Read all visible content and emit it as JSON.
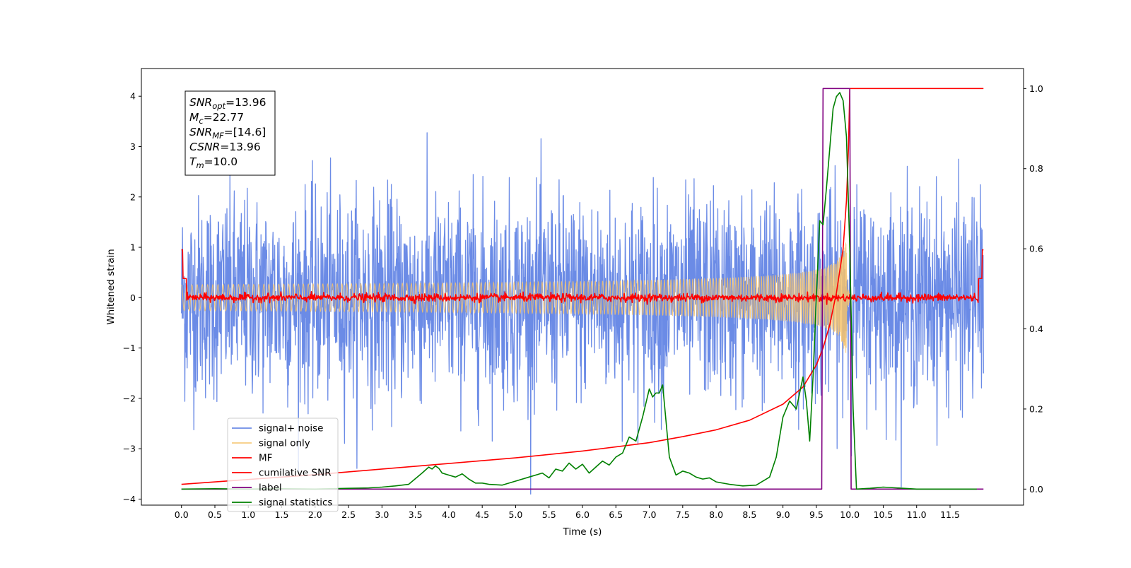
{
  "chart_data": {
    "type": "line",
    "xlabel": "Time (s)",
    "ylabel": "Whitened strain",
    "x_ticks": [
      0.0,
      0.5,
      1.0,
      1.5,
      2.0,
      2.5,
      3.0,
      3.5,
      4.0,
      4.5,
      5.0,
      5.5,
      6.0,
      6.5,
      7.0,
      7.5,
      8.0,
      8.5,
      9.0,
      9.5,
      10.0,
      10.5,
      11.0,
      11.5
    ],
    "xlim": [
      -0.6,
      12.6
    ],
    "ylim_left": [
      -4.12,
      4.55
    ],
    "ylim_right": [
      -0.04,
      1.05
    ],
    "left_ticks": [
      -4,
      -3,
      -2,
      -1,
      0,
      1,
      2,
      3,
      4
    ],
    "right_ticks": [
      0.0,
      0.2,
      0.4,
      0.6,
      0.8,
      1.0
    ],
    "grid": false,
    "legend_location": "lower left",
    "annotations": [
      {
        "key": "snr_opt",
        "base": "SNR",
        "sub": "opt",
        "value": "=13.96"
      },
      {
        "key": "mc",
        "base": "M",
        "sub": "c",
        "value": "=22.77"
      },
      {
        "key": "snr_mf",
        "base": "SNR",
        "sub": "MF",
        "value": "=[14.6]"
      },
      {
        "key": "csnr",
        "base": "CSNR",
        "sub": "",
        "value": "=13.96"
      },
      {
        "key": "tm",
        "base": "T",
        "sub": "m",
        "value": "=10.0"
      }
    ],
    "series": [
      {
        "name": "signal+ noise",
        "color": "#6b8be6",
        "axis": "left",
        "shape": "noise",
        "t_range": [
          0,
          12
        ],
        "amplitude_sd": 1.0
      },
      {
        "name": "signal only",
        "color": "#f5c26b",
        "axis": "left",
        "shape": "chirp",
        "t_range": [
          0,
          10.05
        ],
        "peak_amplitude": 1.1,
        "merger_time": 9.95
      },
      {
        "name": "MF",
        "color": "#ff0000",
        "axis": "left",
        "shape": "mf",
        "t_range": [
          0,
          12
        ],
        "baseline": 0.0,
        "noise_sd": 0.04,
        "edge_value": 0.95
      },
      {
        "name": "cumilative SNR",
        "color": "#ff0000",
        "axis": "right",
        "x": [
          0.0,
          1.0,
          2.0,
          3.0,
          4.0,
          5.0,
          6.0,
          7.0,
          7.5,
          8.0,
          8.5,
          9.0,
          9.3,
          9.5,
          9.6,
          9.7,
          9.8,
          9.9,
          9.95,
          9.98,
          10.0,
          12.0
        ],
        "y": [
          0.012,
          0.024,
          0.036,
          0.05,
          0.064,
          0.078,
          0.095,
          0.116,
          0.131,
          0.148,
          0.172,
          0.212,
          0.255,
          0.31,
          0.352,
          0.41,
          0.49,
          0.6,
          0.72,
          0.85,
          1.0,
          1.0
        ]
      },
      {
        "name": "label",
        "color": "#800080",
        "axis": "right",
        "x": [
          0.0,
          9.58,
          9.6,
          10.0,
          10.02,
          12.0
        ],
        "y": [
          0.0,
          0.0,
          1.0,
          1.0,
          0.0,
          0.0
        ]
      },
      {
        "name": "signal statistics",
        "color": "#008000",
        "axis": "right",
        "x": [
          0.0,
          0.5,
          1.0,
          1.5,
          2.0,
          2.5,
          2.8,
          3.0,
          3.2,
          3.4,
          3.6,
          3.7,
          3.75,
          3.8,
          3.85,
          3.9,
          4.0,
          4.1,
          4.2,
          4.3,
          4.4,
          4.5,
          4.6,
          4.8,
          5.0,
          5.2,
          5.4,
          5.5,
          5.6,
          5.7,
          5.8,
          5.9,
          6.0,
          6.1,
          6.2,
          6.3,
          6.4,
          6.5,
          6.6,
          6.7,
          6.8,
          6.9,
          7.0,
          7.05,
          7.1,
          7.15,
          7.2,
          7.3,
          7.4,
          7.5,
          7.6,
          7.7,
          7.8,
          7.9,
          8.0,
          8.2,
          8.4,
          8.6,
          8.8,
          8.9,
          9.0,
          9.1,
          9.2,
          9.25,
          9.3,
          9.35,
          9.4,
          9.45,
          9.5,
          9.55,
          9.6,
          9.65,
          9.7,
          9.75,
          9.8,
          9.85,
          9.9,
          9.95,
          10.0,
          10.05,
          10.1,
          10.3,
          10.5,
          10.7,
          11.0,
          11.5,
          11.9
        ],
        "y": [
          0.0,
          0.001,
          0.0,
          0.001,
          0.0,
          0.002,
          0.003,
          0.005,
          0.008,
          0.012,
          0.04,
          0.055,
          0.05,
          0.058,
          0.052,
          0.04,
          0.035,
          0.03,
          0.038,
          0.025,
          0.015,
          0.015,
          0.012,
          0.01,
          0.02,
          0.03,
          0.04,
          0.028,
          0.05,
          0.045,
          0.065,
          0.05,
          0.062,
          0.04,
          0.055,
          0.07,
          0.06,
          0.08,
          0.09,
          0.13,
          0.12,
          0.18,
          0.25,
          0.23,
          0.24,
          0.24,
          0.26,
          0.08,
          0.035,
          0.045,
          0.04,
          0.03,
          0.025,
          0.028,
          0.018,
          0.012,
          0.008,
          0.01,
          0.03,
          0.08,
          0.18,
          0.22,
          0.2,
          0.24,
          0.28,
          0.22,
          0.12,
          0.28,
          0.48,
          0.67,
          0.66,
          0.75,
          0.85,
          0.95,
          0.98,
          0.99,
          0.97,
          0.88,
          0.6,
          0.2,
          0.0,
          0.002,
          0.005,
          0.003,
          0.0,
          0.0,
          0.0
        ]
      }
    ]
  }
}
